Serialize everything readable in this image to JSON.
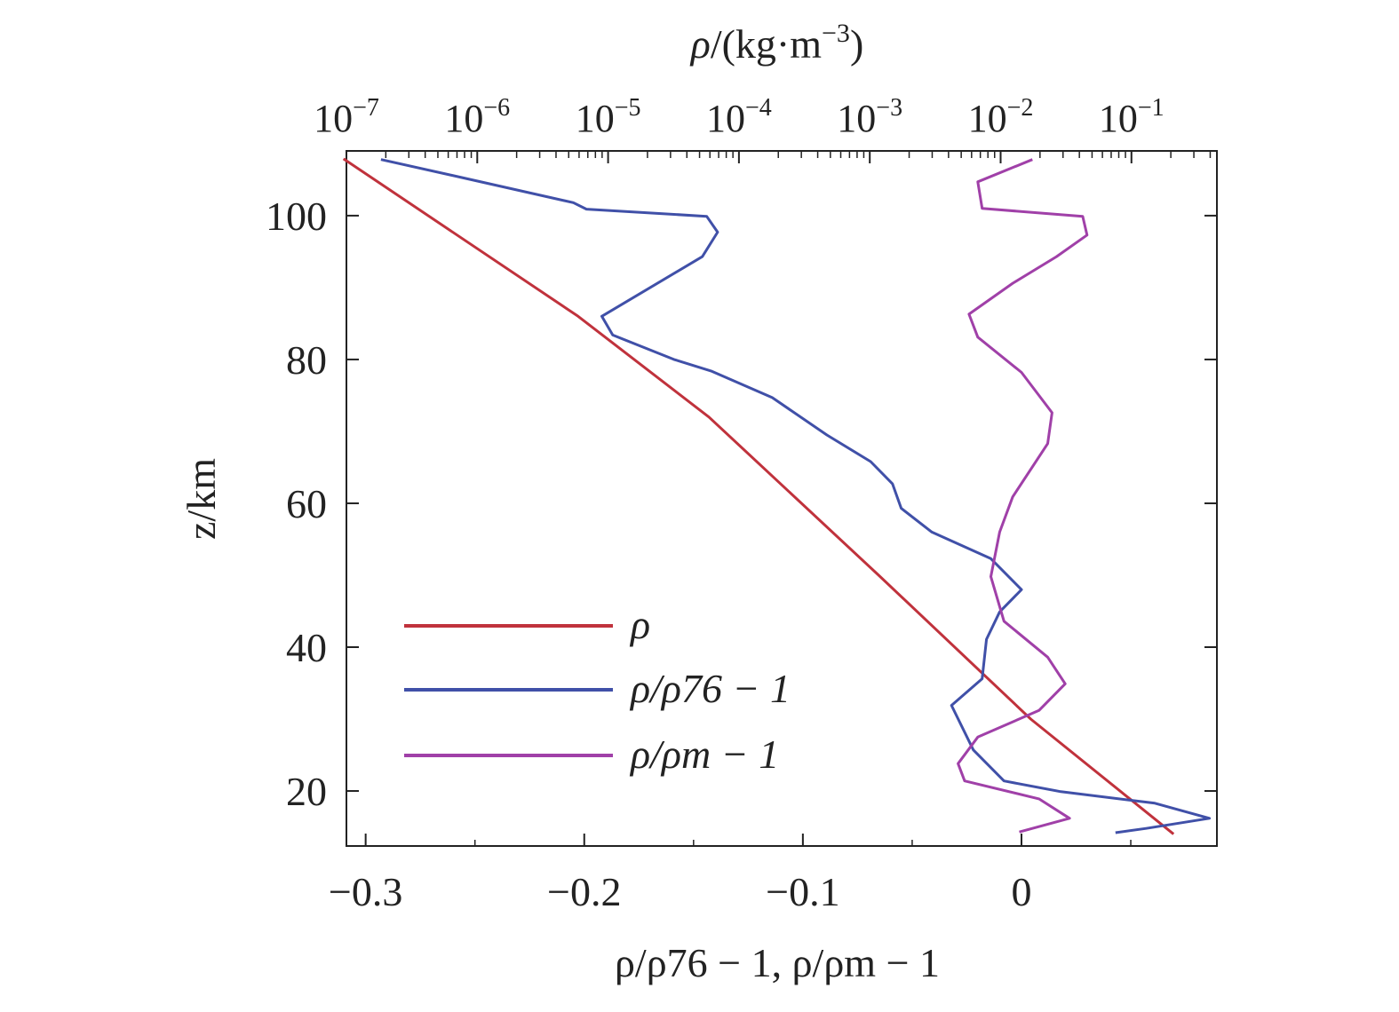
{
  "chart_data": {
    "type": "line",
    "title": "",
    "top_axis": {
      "label_parts": {
        "rho": "ρ",
        "rest": "/(kg·m",
        "exp": "−3",
        "close": ")"
      },
      "scale": "log",
      "range": [
        1e-07,
        0.45
      ],
      "ticks": [
        {
          "base": "10",
          "exp": "−7",
          "value": 1e-07
        },
        {
          "base": "10",
          "exp": "−6",
          "value": 1e-06
        },
        {
          "base": "10",
          "exp": "−5",
          "value": 1e-05
        },
        {
          "base": "10",
          "exp": "−4",
          "value": 0.0001
        },
        {
          "base": "10",
          "exp": "−3",
          "value": 0.001
        },
        {
          "base": "10",
          "exp": "−2",
          "value": 0.01
        },
        {
          "base": "10",
          "exp": "−1",
          "value": 0.1
        }
      ]
    },
    "bottom_axis": {
      "label": "ρ/ρ76 − 1, ρ/ρm − 1",
      "range": [
        -0.3088,
        0.0894
      ],
      "ticks": [
        {
          "label": "−0.3",
          "value": -0.3
        },
        {
          "label": "−0.2",
          "value": -0.2
        },
        {
          "label": "−0.1",
          "value": -0.1
        },
        {
          "label": "0",
          "value": 0
        }
      ]
    },
    "y_axis": {
      "label": "z/km",
      "range": [
        12.35,
        109
      ],
      "ticks": [
        20,
        40,
        60,
        80,
        100
      ]
    },
    "legend": {
      "placement": "lower-left",
      "entries": [
        "ρ",
        "ρ/ρ76 − 1",
        "ρ/ρm − 1"
      ]
    },
    "series": [
      {
        "name": "ρ",
        "axis": "top",
        "color": "#c0323c",
        "points": [
          [
            9.5e-08,
            107.9
          ],
          [
            5.9e-06,
            86
          ],
          [
            5.9e-05,
            72
          ],
          [
            0.00117,
            50
          ],
          [
            0.017,
            30
          ],
          [
            0.21,
            14
          ]
        ]
      },
      {
        "name": "ρ/ρ76 − 1",
        "axis": "bottom",
        "color": "#4050a8",
        "points": [
          [
            -0.293,
            107.8
          ],
          [
            -0.256,
            105.3
          ],
          [
            -0.205,
            101.8
          ],
          [
            -0.199,
            100.9
          ],
          [
            -0.144,
            99.9
          ],
          [
            -0.139,
            97.7
          ],
          [
            -0.146,
            94.3
          ],
          [
            -0.192,
            86
          ],
          [
            -0.187,
            83.4
          ],
          [
            -0.159,
            80
          ],
          [
            -0.142,
            78.4
          ],
          [
            -0.114,
            74.7
          ],
          [
            -0.089,
            69.5
          ],
          [
            -0.069,
            65.8
          ],
          [
            -0.059,
            62.7
          ],
          [
            -0.055,
            59.3
          ],
          [
            -0.041,
            56
          ],
          [
            -0.014,
            52.3
          ],
          [
            0,
            48
          ],
          [
            -0.01,
            44.9
          ],
          [
            -0.016,
            41.1
          ],
          [
            -0.018,
            35.6
          ],
          [
            -0.032,
            31.9
          ],
          [
            -0.022,
            25.7
          ],
          [
            -0.008,
            21.4
          ],
          [
            0.018,
            19.9
          ],
          [
            0.061,
            18.3
          ],
          [
            0.086,
            16.2
          ],
          [
            0.057,
            14.8
          ],
          [
            0.043,
            14.2
          ]
        ]
      },
      {
        "name": "ρ/ρm − 1",
        "axis": "bottom",
        "color": "#a040a8",
        "points": [
          [
            0.005,
            107.8
          ],
          [
            -0.02,
            104.7
          ],
          [
            -0.018,
            101
          ],
          [
            0.028,
            99.9
          ],
          [
            0.03,
            97.3
          ],
          [
            0.016,
            94.3
          ],
          [
            -0.004,
            90.6
          ],
          [
            -0.024,
            86.3
          ],
          [
            -0.02,
            83.1
          ],
          [
            0,
            78.2
          ],
          [
            0.014,
            72.6
          ],
          [
            0.012,
            68.3
          ],
          [
            -0.004,
            60.9
          ],
          [
            -0.01,
            56
          ],
          [
            -0.014,
            49.8
          ],
          [
            -0.008,
            43.6
          ],
          [
            0.012,
            38.6
          ],
          [
            0.02,
            34.9
          ],
          [
            0.008,
            31.2
          ],
          [
            -0.02,
            27.5
          ],
          [
            -0.029,
            23.8
          ],
          [
            -0.026,
            21.4
          ],
          [
            0.008,
            18.9
          ],
          [
            0.022,
            16.2
          ],
          [
            -0.001,
            14.3
          ]
        ]
      }
    ]
  }
}
